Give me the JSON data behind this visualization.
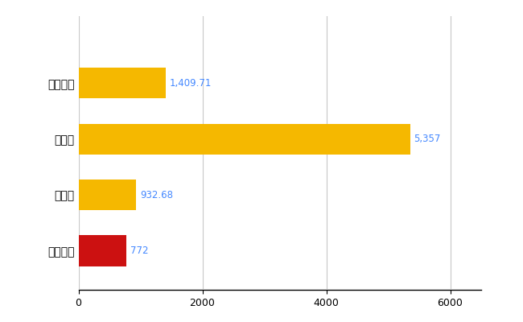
{
  "categories": [
    "にかほ市",
    "県平均",
    "県最大",
    "全国平均"
  ],
  "values": [
    772,
    932.68,
    5357,
    1409.71
  ],
  "bar_colors": [
    "#CC1111",
    "#F5B800",
    "#F5B800",
    "#F5B800"
  ],
  "value_labels": [
    "772",
    "932.68",
    "5,357",
    "1,409.71"
  ],
  "xlim": [
    0,
    6500
  ],
  "xticks": [
    0,
    2000,
    4000,
    6000
  ],
  "background_color": "#FFFFFF",
  "grid_color": "#C8C8C8",
  "bar_height": 0.55,
  "label_fontsize": 10,
  "value_fontsize": 8.5,
  "value_label_color": "#4488FF",
  "tick_label_color": "#000000"
}
